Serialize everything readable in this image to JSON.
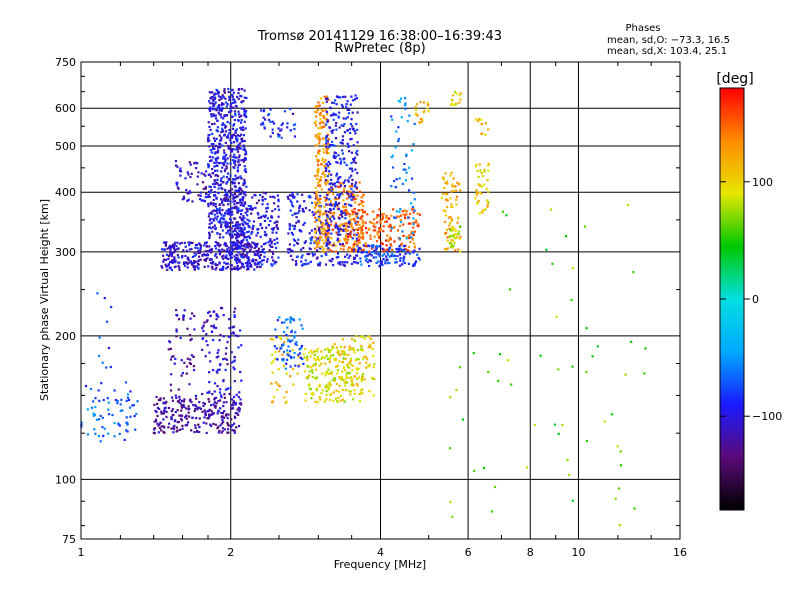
{
  "chart_data": {
    "type": "scatter",
    "title": "Tromsø 20141129 16:38:00–16:39:43",
    "subtitle": "RwPretec (8p)",
    "phases_box": {
      "heading": "Phases",
      "line1": "mean, sd,O: −73.3, 16.5",
      "line2": "mean, sd,X: 103.4, 25.1"
    },
    "xlabel": "Frequency [MHz]",
    "ylabel": "Stationary phase Virtual Height [km]",
    "x_scale": "log",
    "y_scale": "log",
    "xlim": [
      1,
      16
    ],
    "ylim": [
      75,
      750
    ],
    "x_ticks": [
      {
        "value": 1,
        "label": "1"
      },
      {
        "value": 2,
        "label": "2"
      },
      {
        "value": 4,
        "label": "4"
      },
      {
        "value": 6,
        "label": "6"
      },
      {
        "value": 8,
        "label": "8"
      },
      {
        "value": 10,
        "label": "10"
      },
      {
        "value": 16,
        "label": "16"
      }
    ],
    "y_ticks": [
      {
        "value": 75,
        "label": "75"
      },
      {
        "value": 100,
        "label": "100"
      },
      {
        "value": 200,
        "label": "200"
      },
      {
        "value": 300,
        "label": "300"
      },
      {
        "value": 400,
        "label": "400"
      },
      {
        "value": 500,
        "label": "500"
      },
      {
        "value": 600,
        "label": "600"
      },
      {
        "value": 750,
        "label": "750"
      }
    ],
    "grid": true,
    "colorbar": {
      "label": "[deg]",
      "min": -180,
      "max": 180,
      "ticks": [
        {
          "value": 100,
          "label": "100"
        },
        {
          "value": 0,
          "label": "0"
        },
        {
          "value": -100,
          "label": "−100"
        }
      ],
      "colors": [
        "#000000",
        "#5a0a78",
        "#1a1aff",
        "#00aaff",
        "#00e0e0",
        "#00c800",
        "#e6e600",
        "#ff8c00",
        "#ff0000"
      ]
    },
    "traces": [
      {
        "name": "",
        "x_range": [
          1.0,
          1.3
        ],
        "y_range": [
          120,
          160
        ],
        "phase": -70,
        "count": 70
      },
      {
        "name": "",
        "x_range": [
          1.05,
          1.15
        ],
        "y_range": [
          170,
          250
        ],
        "phase": -80,
        "count": 10
      },
      {
        "name": "",
        "x_range": [
          1.4,
          2.1
        ],
        "y_range": [
          125,
          150
        ],
        "phase": -120,
        "count": 260
      },
      {
        "name": "",
        "x_range": [
          1.5,
          1.7
        ],
        "y_range": [
          150,
          230
        ],
        "phase": -115,
        "count": 50
      },
      {
        "name": "",
        "x_range": [
          1.75,
          2.1
        ],
        "y_range": [
          150,
          230
        ],
        "phase": -105,
        "count": 110
      },
      {
        "name": "",
        "x_range": [
          1.45,
          2.3
        ],
        "y_range": [
          275,
          315
        ],
        "phase": -105,
        "count": 380
      },
      {
        "name": "",
        "x_range": [
          1.8,
          2.15
        ],
        "y_range": [
          320,
          660
        ],
        "phase": -100,
        "count": 650
      },
      {
        "name": "",
        "x_range": [
          1.55,
          1.8
        ],
        "y_range": [
          380,
          470
        ],
        "phase": -110,
        "count": 55
      },
      {
        "name": "",
        "x_range": [
          2.05,
          2.5
        ],
        "y_range": [
          280,
          400
        ],
        "phase": -100,
        "count": 210
      },
      {
        "name": "",
        "x_range": [
          2.3,
          2.7
        ],
        "y_range": [
          520,
          600
        ],
        "phase": -90,
        "count": 40
      },
      {
        "name": "",
        "x_range": [
          2.4,
          2.75
        ],
        "y_range": [
          140,
          200
        ],
        "phase": 110,
        "count": 40
      },
      {
        "name": "",
        "x_range": [
          2.45,
          2.8
        ],
        "y_range": [
          170,
          220
        ],
        "phase": -70,
        "count": 70
      },
      {
        "name": "",
        "x_range": [
          2.6,
          3.05
        ],
        "y_range": [
          280,
          400
        ],
        "phase": -95,
        "count": 150
      },
      {
        "name": "",
        "x_range": [
          2.95,
          3.15
        ],
        "y_range": [
          300,
          640
        ],
        "phase": 130,
        "count": 200
      },
      {
        "name": "",
        "x_range": [
          2.8,
          3.7
        ],
        "y_range": [
          145,
          190
        ],
        "phase": 90,
        "count": 190
      },
      {
        "name": "",
        "x_range": [
          3.2,
          3.9
        ],
        "y_range": [
          150,
          200
        ],
        "phase": 100,
        "count": 90
      },
      {
        "name": "",
        "x_range": [
          3.1,
          3.7
        ],
        "y_range": [
          300,
          420
        ],
        "phase": 140,
        "count": 170
      },
      {
        "name": "",
        "x_range": [
          3.1,
          3.6
        ],
        "y_range": [
          280,
          640
        ],
        "phase": -95,
        "count": 330
      },
      {
        "name": "",
        "x_range": [
          3.4,
          4.8
        ],
        "y_range": [
          300,
          370
        ],
        "phase": 150,
        "count": 200
      },
      {
        "name": "",
        "x_range": [
          3.6,
          4.8
        ],
        "y_range": [
          280,
          310
        ],
        "phase": -80,
        "count": 120
      },
      {
        "name": "",
        "x_range": [
          4.2,
          4.7
        ],
        "y_range": [
          320,
          660
        ],
        "phase": -60,
        "count": 60
      },
      {
        "name": "",
        "x_range": [
          4.7,
          5.0
        ],
        "y_range": [
          560,
          620
        ],
        "phase": 110,
        "count": 20
      },
      {
        "name": "",
        "x_range": [
          5.3,
          5.8
        ],
        "y_range": [
          300,
          440
        ],
        "phase": 120,
        "count": 70
      },
      {
        "name": "",
        "x_range": [
          5.5,
          5.8
        ],
        "y_range": [
          300,
          340
        ],
        "phase": 80,
        "count": 30
      },
      {
        "name": "",
        "x_range": [
          5.5,
          5.8
        ],
        "y_range": [
          610,
          650
        ],
        "phase": 100,
        "count": 15
      },
      {
        "name": "",
        "x_range": [
          6.2,
          6.6
        ],
        "y_range": [
          360,
          460
        ],
        "phase": 100,
        "count": 40
      },
      {
        "name": "",
        "x_range": [
          6.2,
          6.6
        ],
        "y_range": [
          520,
          600
        ],
        "phase": 110,
        "count": 10
      },
      {
        "name": "",
        "x_range": [
          5.5,
          14.0
        ],
        "y_range": [
          80,
          200
        ],
        "phase": 60,
        "count": 45
      },
      {
        "name": "",
        "x_range": [
          6.5,
          13.0
        ],
        "y_range": [
          200,
          480
        ],
        "phase": 60,
        "count": 14
      }
    ]
  }
}
